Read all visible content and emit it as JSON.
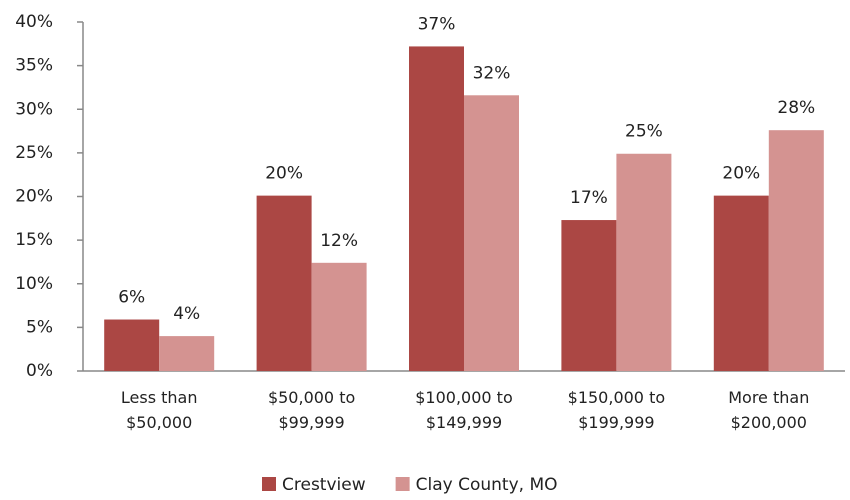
{
  "chart_data": {
    "type": "bar",
    "categories": [
      "Less than\n$50,000",
      "$50,000 to\n$99,999",
      "$100,000 to\n$149,999",
      "$150,000 to\n$199,999",
      "More than\n$200,000"
    ],
    "series": [
      {
        "name": "Crestview",
        "color": "#ab4744",
        "values": [
          5.9,
          20.1,
          37.2,
          17.3,
          20.1
        ],
        "value_labels": [
          "6%",
          "20%",
          "37%",
          "17%",
          "20%"
        ]
      },
      {
        "name": "Clay County, MO",
        "color": "#d49391",
        "values": [
          4.0,
          12.4,
          31.6,
          24.9,
          27.6
        ],
        "value_labels": [
          "4%",
          "12%",
          "32%",
          "25%",
          "28%"
        ]
      }
    ],
    "ylim": [
      0,
      40
    ],
    "yticks": [
      {
        "value": 0,
        "label": "0%"
      },
      {
        "value": 5,
        "label": "5%"
      },
      {
        "value": 10,
        "label": "10%"
      },
      {
        "value": 15,
        "label": "15%"
      },
      {
        "value": 20,
        "label": "20%"
      },
      {
        "value": 25,
        "label": "25%"
      },
      {
        "value": 30,
        "label": "30%"
      },
      {
        "value": 35,
        "label": "35%"
      },
      {
        "value": 40,
        "label": "40%"
      }
    ],
    "grid": false,
    "legend": "bottom"
  }
}
